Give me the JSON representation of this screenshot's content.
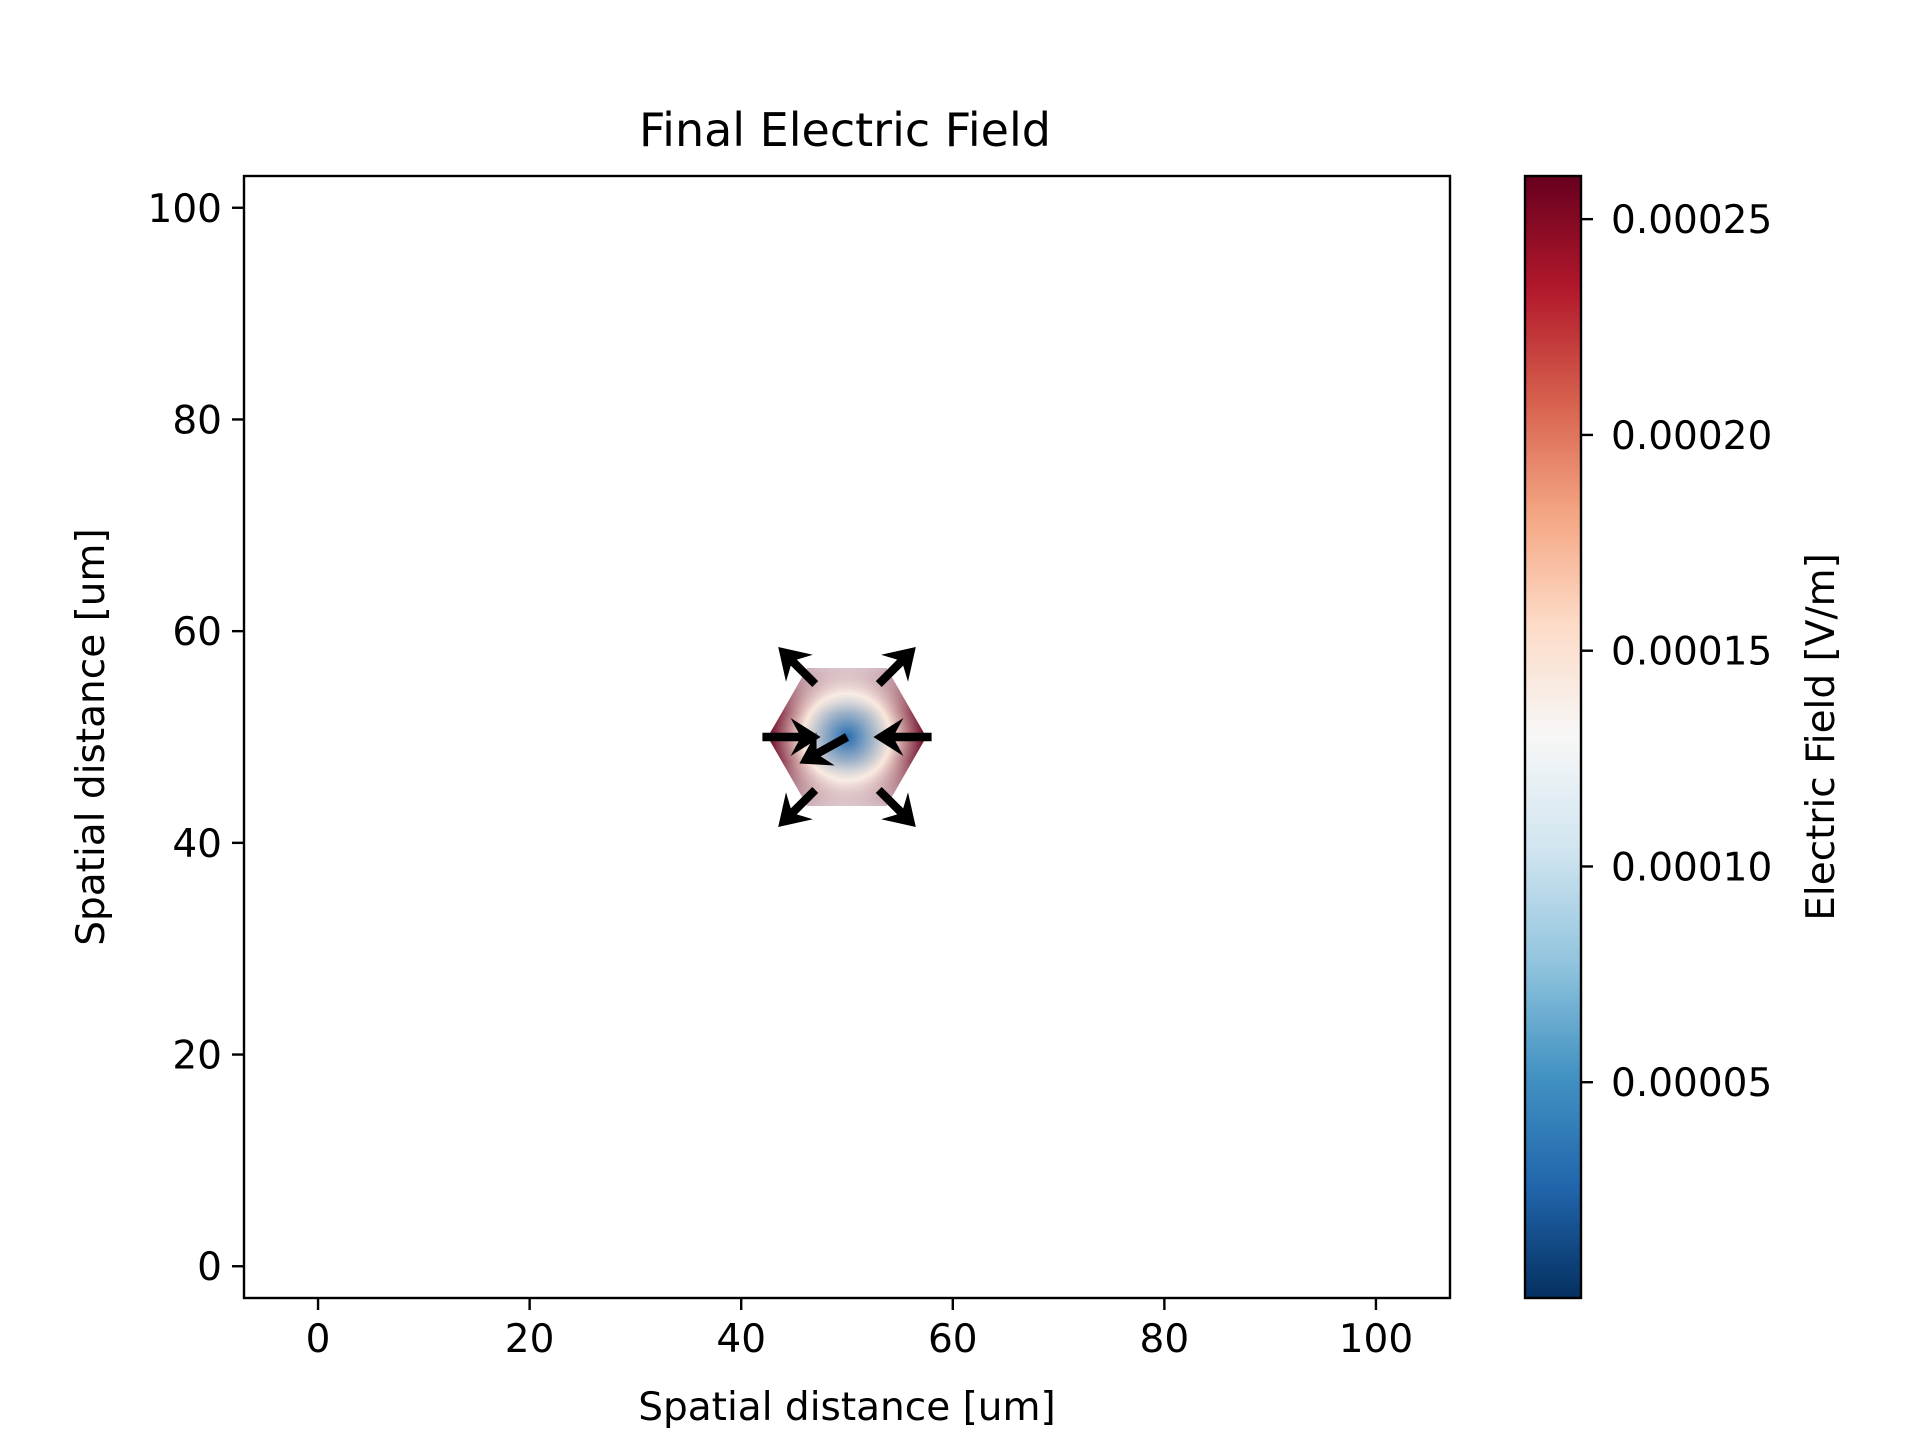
{
  "chart_data": {
    "type": "heatmap",
    "title": "Final Electric Field",
    "xlabel": "Spatial distance [um]",
    "ylabel": "Spatial distance [um]",
    "xlim": [
      -7,
      107
    ],
    "ylim": [
      -3,
      103
    ],
    "xticks": [
      0,
      20,
      40,
      60,
      80,
      100
    ],
    "yticks": [
      0,
      20,
      40,
      60,
      80,
      100
    ],
    "grid": false,
    "colorbar": {
      "label": "Electric Field [V/m]",
      "colormap": "RdBu_r",
      "range": [
        0.0,
        0.00026
      ],
      "ticks": [
        5e-05,
        0.0001,
        0.00015,
        0.0002,
        0.00025
      ],
      "tick_labels": [
        "0.00005",
        "0.00010",
        "0.00015",
        "0.00020",
        "0.00025"
      ],
      "colors": [
        "#053061",
        "#2166ac",
        "#4393c3",
        "#92c5de",
        "#d1e5f0",
        "#f7f7f7",
        "#fddbc7",
        "#f4a582",
        "#d6604d",
        "#b2182b",
        "#67001f"
      ]
    },
    "field_region": {
      "shape": "hexagon",
      "center": [
        50,
        50
      ],
      "radius": 7.5,
      "center_value": 3e-05,
      "edge_value_horizontal": 0.00026,
      "edge_value_vertical": 0.00013
    },
    "vectors": [
      {
        "x": 50,
        "y": 50,
        "u": -4.5,
        "v": -2.5
      },
      {
        "x": 42,
        "y": 50,
        "u": 5.5,
        "v": 0
      },
      {
        "x": 58,
        "y": 50,
        "u": -5.5,
        "v": 0
      },
      {
        "x": 47,
        "y": 55,
        "u": -3.5,
        "v": 3.5
      },
      {
        "x": 53,
        "y": 55,
        "u": 3.5,
        "v": 3.5
      },
      {
        "x": 47,
        "y": 45,
        "u": -3.5,
        "v": -3.5
      },
      {
        "x": 53,
        "y": 45,
        "u": 3.5,
        "v": -3.5
      }
    ]
  }
}
